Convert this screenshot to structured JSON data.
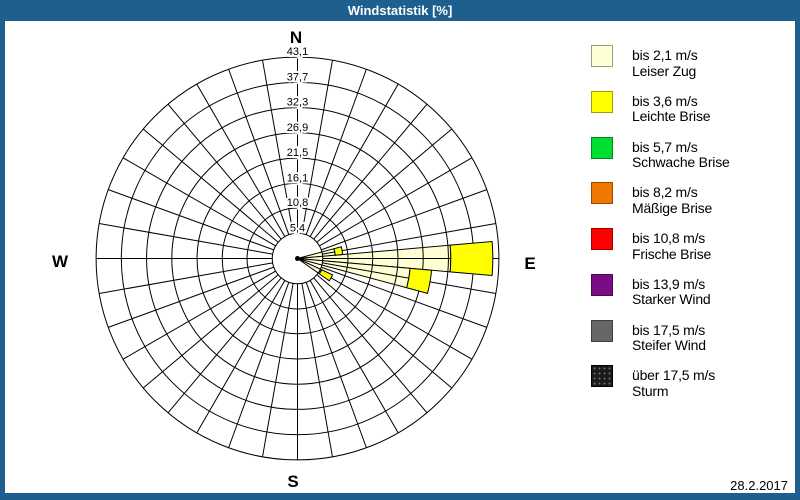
{
  "window": {
    "title": "Windstatistik [%]",
    "date": "28.2.2017",
    "frame_color": "#1F5F8D",
    "background": "#FFFFFF"
  },
  "compass": {
    "north": "N",
    "east": "E",
    "south": "S",
    "west": "W"
  },
  "chart_data": {
    "type": "windrose",
    "title": "Windstatistik [%]",
    "units": "%",
    "grid_sectors": 36,
    "sector_width_deg": 10,
    "max_value": 43.1,
    "ring_values": [
      5.4,
      10.8,
      16.1,
      21.5,
      26.9,
      32.3,
      37.7,
      43.1
    ],
    "ring_labels": [
      "5,4",
      "10,8",
      "16,1",
      "21,5",
      "26,9",
      "32,3",
      "37,7",
      "43,1"
    ],
    "grid_color": "#000000",
    "class_colors": {
      "bis 2,1 m/s": "#FFFFD4",
      "bis 3,6 m/s": "#FFFF00"
    },
    "wedges": [
      {
        "direction_deg": 80,
        "segments": [
          {
            "class": "bis 2,1 m/s",
            "value": 8.1
          },
          {
            "class": "bis 3,6 m/s",
            "value": 1.6
          }
        ]
      },
      {
        "direction_deg": 90,
        "segments": [
          {
            "class": "bis 2,1 m/s",
            "value": 32.8
          },
          {
            "class": "bis 3,6 m/s",
            "value": 9.0
          }
        ]
      },
      {
        "direction_deg": 100,
        "segments": [
          {
            "class": "bis 2,1 m/s",
            "value": 24.2
          },
          {
            "class": "bis 3,6 m/s",
            "value": 4.6
          }
        ]
      },
      {
        "direction_deg": 120,
        "segments": [
          {
            "class": "bis 2,1 m/s",
            "value": 5.7
          },
          {
            "class": "bis 3,6 m/s",
            "value": 2.6
          }
        ]
      }
    ]
  },
  "legend": {
    "items": [
      {
        "color": "#FFFFD4",
        "speed": "bis 2,1 m/s",
        "name": "Leiser Zug",
        "textured": false
      },
      {
        "color": "#FFFF00",
        "speed": "bis 3,6 m/s",
        "name": "Leichte Brise",
        "textured": false
      },
      {
        "color": "#00DD33",
        "speed": "bis 5,7 m/s",
        "name": "Schwache Brise",
        "textured": false
      },
      {
        "color": "#EE7700",
        "speed": "bis 8,2 m/s",
        "name": "Mäßige Brise",
        "textured": false
      },
      {
        "color": "#FF0000",
        "speed": "bis 10,8 m/s",
        "name": "Frische Brise",
        "textured": false
      },
      {
        "color": "#7B0A85",
        "speed": "bis 13,9 m/s",
        "name": "Starker Wind",
        "textured": false
      },
      {
        "color": "#666666",
        "speed": "bis 17,5 m/s",
        "name": "Steifer Wind",
        "textured": false
      },
      {
        "color": "#1A1A1A",
        "speed": "über 17,5 m/s",
        "name": "Sturm",
        "textured": true
      }
    ]
  }
}
